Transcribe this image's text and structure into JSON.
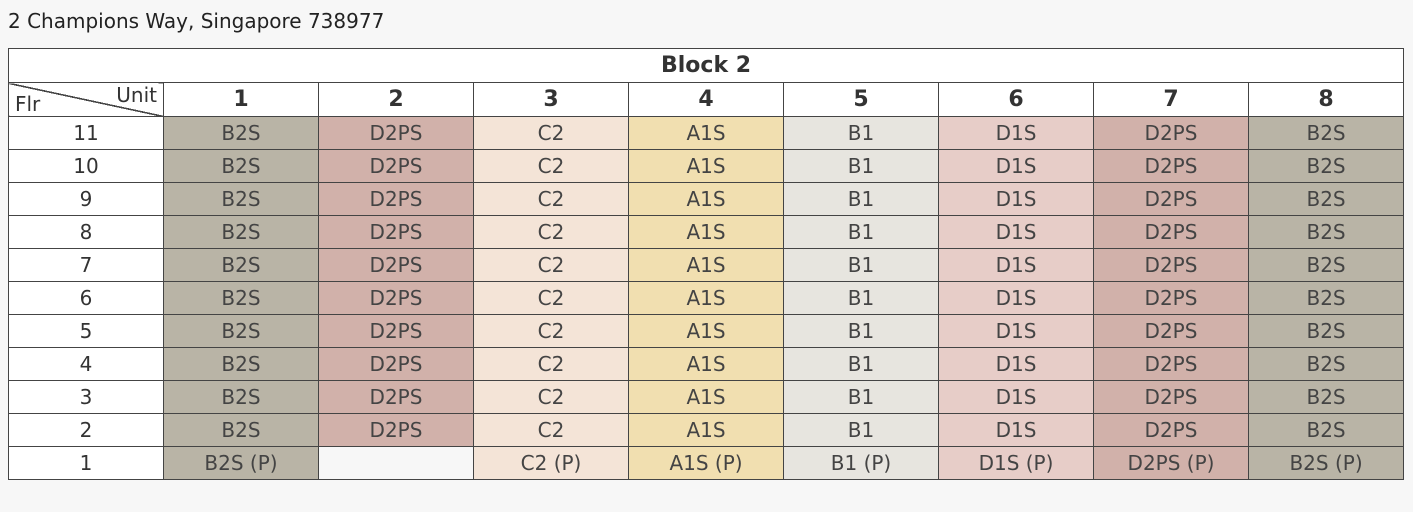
{
  "address": "2 Champions Way, Singapore 738977",
  "block": {
    "title": "Block 2",
    "corner_unit_label": "Unit",
    "corner_floor_label": "Flr",
    "units": [
      "1",
      "2",
      "3",
      "4",
      "5",
      "6",
      "7",
      "8"
    ],
    "unit_colors": [
      "#b9b4a6",
      "#d1b1aa",
      "#f4e4d7",
      "#f1dfb0",
      "#e7e5df",
      "#e7cdc8",
      "#d1b1aa",
      "#b9b4a6"
    ],
    "rows": [
      {
        "floor": "11",
        "cells": [
          "B2S",
          "D2PS",
          "C2",
          "A1S",
          "B1",
          "D1S",
          "D2PS",
          "B2S"
        ]
      },
      {
        "floor": "10",
        "cells": [
          "B2S",
          "D2PS",
          "C2",
          "A1S",
          "B1",
          "D1S",
          "D2PS",
          "B2S"
        ]
      },
      {
        "floor": "9",
        "cells": [
          "B2S",
          "D2PS",
          "C2",
          "A1S",
          "B1",
          "D1S",
          "D2PS",
          "B2S"
        ]
      },
      {
        "floor": "8",
        "cells": [
          "B2S",
          "D2PS",
          "C2",
          "A1S",
          "B1",
          "D1S",
          "D2PS",
          "B2S"
        ]
      },
      {
        "floor": "7",
        "cells": [
          "B2S",
          "D2PS",
          "C2",
          "A1S",
          "B1",
          "D1S",
          "D2PS",
          "B2S"
        ]
      },
      {
        "floor": "6",
        "cells": [
          "B2S",
          "D2PS",
          "C2",
          "A1S",
          "B1",
          "D1S",
          "D2PS",
          "B2S"
        ]
      },
      {
        "floor": "5",
        "cells": [
          "B2S",
          "D2PS",
          "C2",
          "A1S",
          "B1",
          "D1S",
          "D2PS",
          "B2S"
        ]
      },
      {
        "floor": "4",
        "cells": [
          "B2S",
          "D2PS",
          "C2",
          "A1S",
          "B1",
          "D1S",
          "D2PS",
          "B2S"
        ]
      },
      {
        "floor": "3",
        "cells": [
          "B2S",
          "D2PS",
          "C2",
          "A1S",
          "B1",
          "D1S",
          "D2PS",
          "B2S"
        ]
      },
      {
        "floor": "2",
        "cells": [
          "B2S",
          "D2PS",
          "C2",
          "A1S",
          "B1",
          "D1S",
          "D2PS",
          "B2S"
        ]
      },
      {
        "floor": "1",
        "cells": [
          "B2S (P)",
          "",
          "C2 (P)",
          "A1S (P)",
          "B1 (P)",
          "D1S (P)",
          "D2PS (P)",
          "B2S (P)"
        ]
      }
    ]
  }
}
